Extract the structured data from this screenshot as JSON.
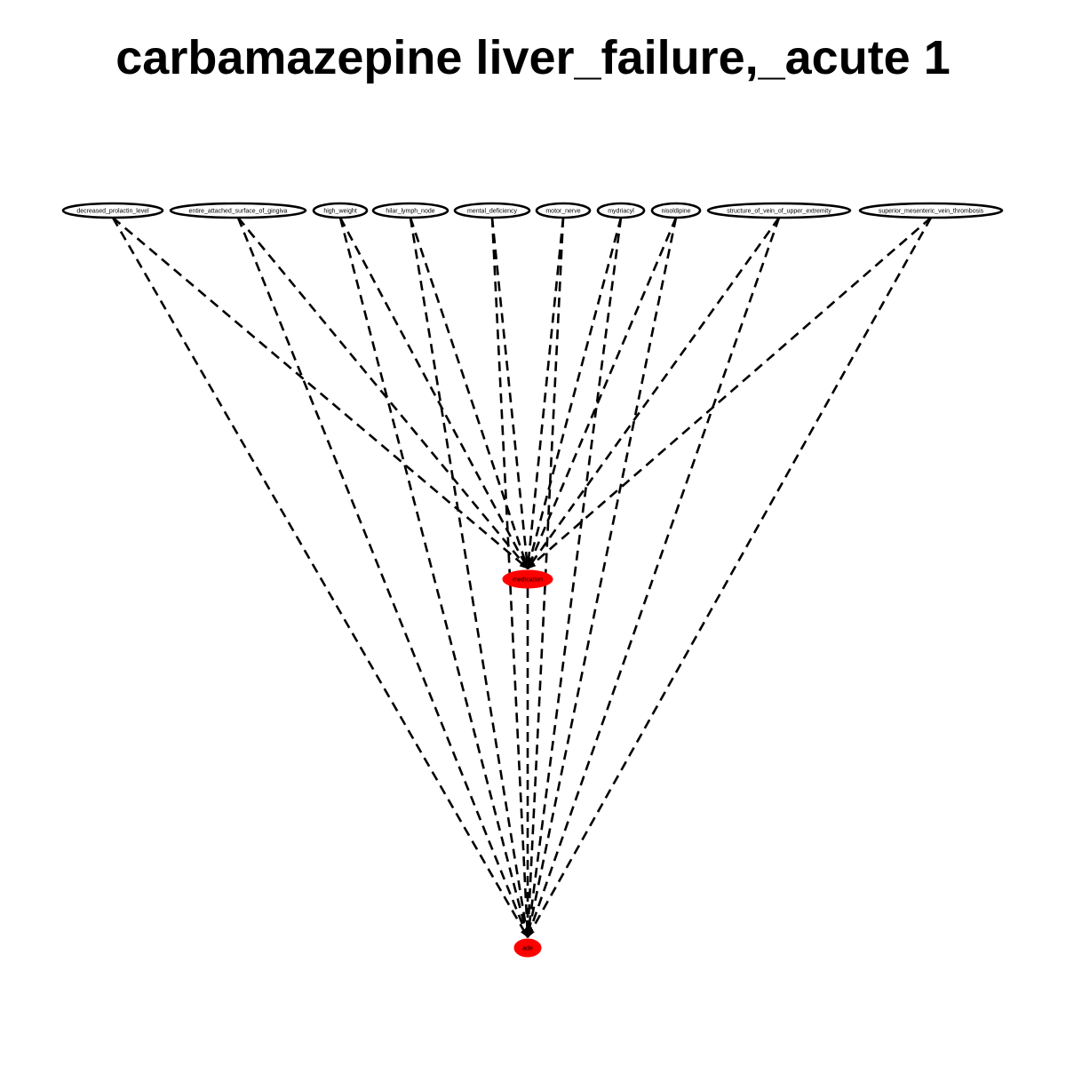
{
  "title": "carbamazepine liver_failure,_acute 1",
  "colors": {
    "background": "#ffffff",
    "line": "#000000",
    "highlight_node_fill": "#ff0000",
    "top_node_fill": "#ffffff"
  },
  "graph": {
    "edge_style": "dashed",
    "top_nodes": [
      {
        "id": "n1",
        "label": "decreased_prolactin_level"
      },
      {
        "id": "n2",
        "label": "entire_attached_surface_of_gingiva"
      },
      {
        "id": "n3",
        "label": "high_weight"
      },
      {
        "id": "n4",
        "label": "hilar_lymph_node"
      },
      {
        "id": "n5",
        "label": "mental_deficiency"
      },
      {
        "id": "n6",
        "label": "motor_nerve"
      },
      {
        "id": "n7",
        "label": "mydriacyl"
      },
      {
        "id": "n8",
        "label": "nisoldipine"
      },
      {
        "id": "n9",
        "label": "structure_of_vein_of_upper_extremity"
      },
      {
        "id": "n10",
        "label": "superior_mesenteric_vein_thrombosis"
      }
    ],
    "middle_node": {
      "id": "medication",
      "label": "medication"
    },
    "bottom_node": {
      "id": "ade",
      "label": "ade"
    },
    "edges": [
      {
        "from": "n1",
        "to": "medication"
      },
      {
        "from": "n1",
        "to": "ade"
      },
      {
        "from": "n2",
        "to": "medication"
      },
      {
        "from": "n2",
        "to": "ade"
      },
      {
        "from": "n3",
        "to": "medication"
      },
      {
        "from": "n3",
        "to": "ade"
      },
      {
        "from": "n4",
        "to": "medication"
      },
      {
        "from": "n4",
        "to": "ade"
      },
      {
        "from": "n5",
        "to": "medication"
      },
      {
        "from": "n5",
        "to": "ade"
      },
      {
        "from": "n6",
        "to": "medication"
      },
      {
        "from": "n6",
        "to": "ade"
      },
      {
        "from": "n7",
        "to": "medication"
      },
      {
        "from": "n7",
        "to": "ade"
      },
      {
        "from": "n8",
        "to": "medication"
      },
      {
        "from": "n8",
        "to": "ade"
      },
      {
        "from": "n9",
        "to": "medication"
      },
      {
        "from": "n9",
        "to": "ade"
      },
      {
        "from": "n10",
        "to": "medication"
      },
      {
        "from": "n10",
        "to": "ade"
      },
      {
        "from": "medication",
        "to": "ade"
      }
    ]
  }
}
